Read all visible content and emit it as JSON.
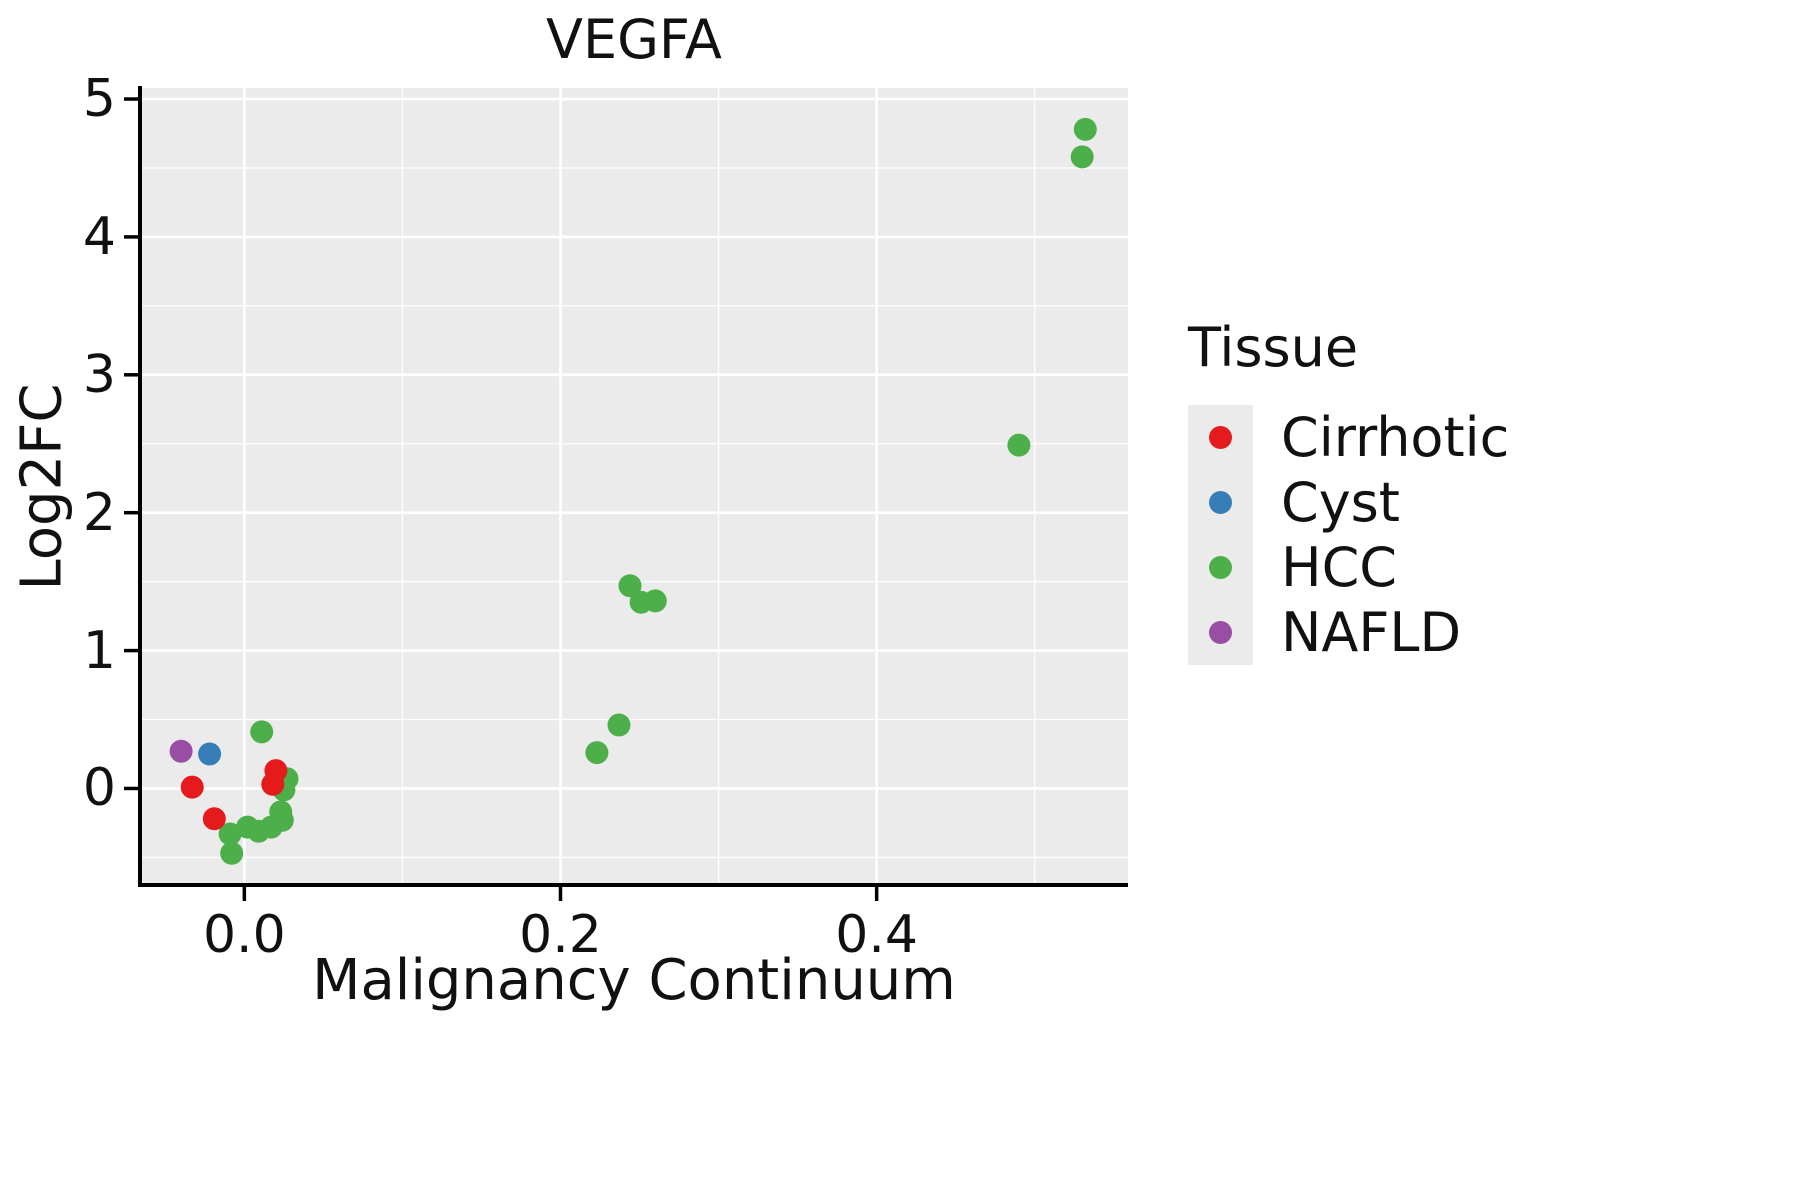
{
  "chart_data": {
    "type": "scatter",
    "title": "VEGFA",
    "xlabel": "Malignancy Continuum",
    "ylabel": "Log2FC",
    "xlim": [
      -0.066,
      0.559
    ],
    "ylim": [
      -0.7,
      5.08
    ],
    "x_ticks": {
      "major": [
        0.0,
        0.2,
        0.4
      ],
      "labels": [
        "0.0",
        "0.2",
        "0.4"
      ],
      "minor": [
        0.1,
        0.3,
        0.5
      ]
    },
    "y_ticks": {
      "major": [
        0,
        1,
        2,
        3,
        4,
        5
      ],
      "labels": [
        "0",
        "1",
        "2",
        "3",
        "4",
        "5"
      ],
      "minor": [
        -0.5,
        0.5,
        1.5,
        2.5,
        3.5,
        4.5
      ]
    },
    "grid": true,
    "panel_background": "#EBEBEB",
    "grid_color": "#FFFFFF",
    "axis_color": "#000000",
    "legend": {
      "title": "Tissue",
      "position": "right",
      "key_background": "#EBEBEB"
    },
    "series": [
      {
        "name": "Cirrhotic",
        "color": "#E41A1C",
        "points": [
          [
            -0.033,
            0.01
          ],
          [
            -0.019,
            -0.22
          ],
          [
            0.02,
            0.13
          ],
          [
            0.018,
            0.03
          ]
        ]
      },
      {
        "name": "Cyst",
        "color": "#377EB8",
        "points": [
          [
            -0.022,
            0.25
          ]
        ]
      },
      {
        "name": "HCC",
        "color": "#4DAF4A",
        "points": [
          [
            0.011,
            0.41
          ],
          [
            0.027,
            0.07
          ],
          [
            0.025,
            -0.01
          ],
          [
            0.023,
            -0.17
          ],
          [
            0.024,
            -0.23
          ],
          [
            0.017,
            -0.28
          ],
          [
            0.009,
            -0.31
          ],
          [
            0.002,
            -0.28
          ],
          [
            -0.009,
            -0.33
          ],
          [
            -0.008,
            -0.47
          ],
          [
            0.223,
            0.26
          ],
          [
            0.237,
            0.46
          ],
          [
            0.244,
            1.47
          ],
          [
            0.251,
            1.35
          ],
          [
            0.26,
            1.36
          ],
          [
            0.49,
            2.49
          ],
          [
            0.532,
            4.78
          ],
          [
            0.53,
            4.58
          ]
        ]
      },
      {
        "name": "NAFLD",
        "color": "#984EA3",
        "points": [
          [
            -0.04,
            0.27
          ]
        ]
      }
    ]
  }
}
